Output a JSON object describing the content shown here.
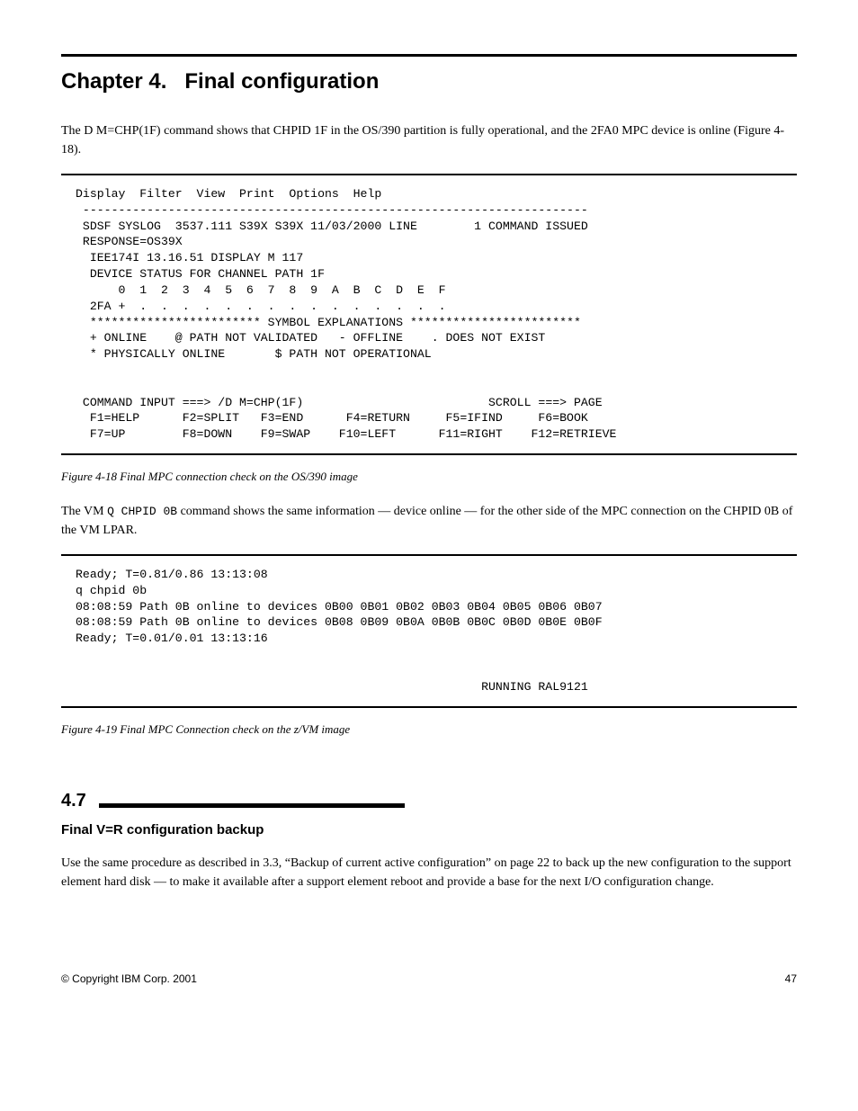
{
  "chapter": {
    "number": "Chapter 4.",
    "title": "Final configuration"
  },
  "para1": "The D M=CHP(1F) command shows that CHPID 1F in the OS/390 partition is fully operational, and the 2FA0 MPC device is online (Figure 4-18).",
  "terminal1": {
    "menu": "Display  Filter  View  Print  Options  Help",
    "rule": " -----------------------------------------------------------------------",
    "lines": [
      " SDSF SYSLOG  3537.111 S39X S39X 11/03/2000 LINE        1 COMMAND ISSUED",
      " RESPONSE=OS39X",
      "  IEE174I 13.16.51 DISPLAY M 117",
      "  DEVICE STATUS FOR CHANNEL PATH 1F",
      "      0  1  2  3  4  5  6  7  8  9  A  B  C  D  E  F",
      "  2FA +  .  .  .  .  .  .  .  .  .  .  .  .  .  .  .",
      "  ************************ SYMBOL EXPLANATIONS ************************",
      "  + ONLINE    @ PATH NOT VALIDATED   - OFFLINE    . DOES NOT EXIST",
      "  * PHYSICALLY ONLINE       $ PATH NOT OPERATIONAL",
      "",
      ""
    ],
    "cmd_left": " COMMAND INPUT ===> /D M=CHP(1F)",
    "cmd_right": "SCROLL ===> PAGE",
    "fkeys1": "  F1=HELP      F2=SPLIT   F3=END      F4=RETURN     F5=IFIND     F6=BOOK",
    "fkeys2": "  F7=UP        F8=DOWN    F9=SWAP    F10=LEFT      F11=RIGHT    F12=RETRIEVE"
  },
  "caption1": "Figure 4-18   Final MPC connection check on the OS/390 image",
  "para2_a": "The VM ",
  "para2_cmd": "Q CHPID 0B",
  "para2_b": " command shows the same information — device online — for the other side of the MPC connection on the CHPID 0B of the VM LPAR.",
  "terminal2": {
    "lines": [
      "Ready; T=0.81/0.86 13:13:08",
      "q chpid 0b",
      "08:08:59 Path 0B online to devices 0B00 0B01 0B02 0B03 0B04 0B05 0B06 0B07",
      "08:08:59 Path 0B online to devices 0B08 0B09 0B0A 0B0B 0B0C 0B0D 0B0E 0B0F",
      "Ready; T=0.01/0.01 13:13:16",
      "",
      ""
    ],
    "status": "                                                         RUNNING RAL9121"
  },
  "caption2": "Figure 4-19   Final MPC Connection check on the z/VM image",
  "section": {
    "number": "4.7",
    "subtitle": "Final V=R configuration backup"
  },
  "para3": "Use the same procedure as described in 3.3, “Backup of current active configuration” on page 22 to back up the new configuration to the support element hard disk — to make it available after a support element reboot and provide a base for the next I/O configuration change.",
  "footer": {
    "copyright": "© Copyright IBM Corp. 2001",
    "page": "47"
  }
}
